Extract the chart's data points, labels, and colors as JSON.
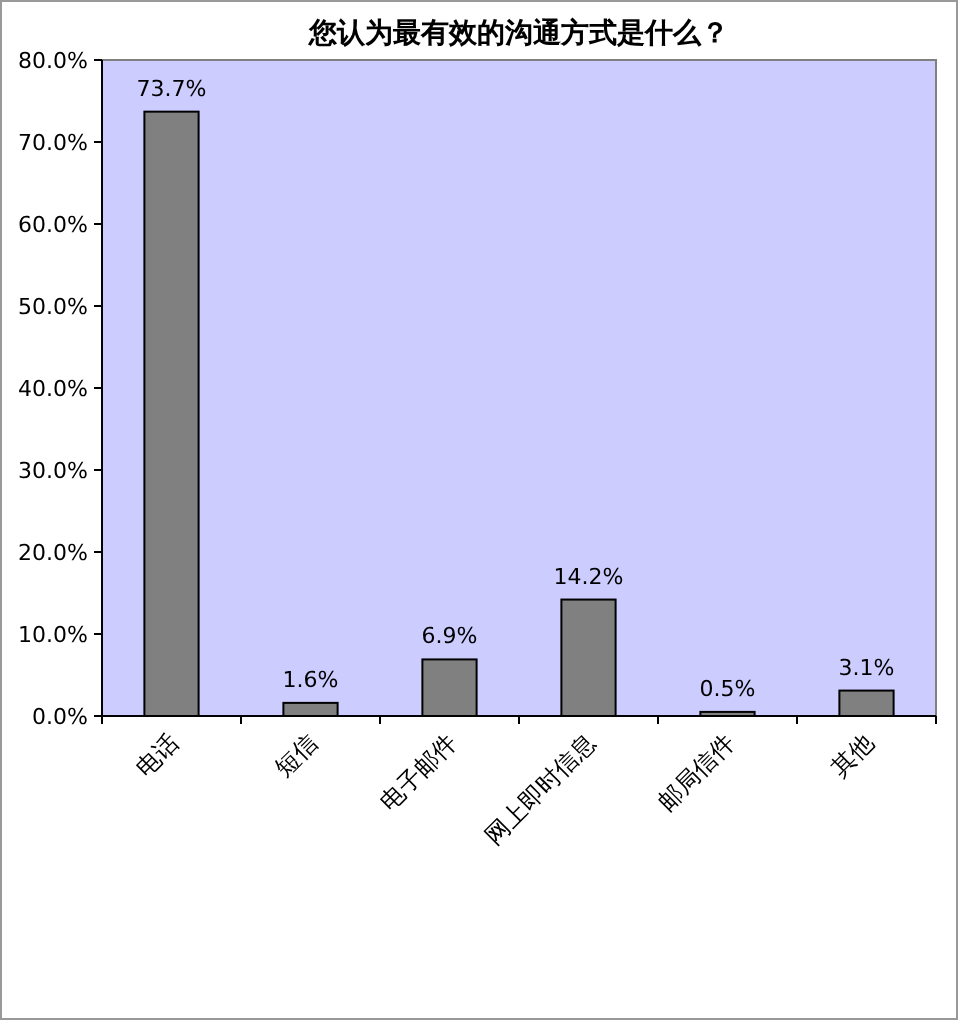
{
  "chart_data": {
    "type": "bar",
    "title": "您认为最有效的沟通方式是什么？",
    "categories": [
      "电话",
      "短信",
      "电子邮件",
      "网上即时信息",
      "邮局信件",
      "其他"
    ],
    "values": [
      73.7,
      1.6,
      6.9,
      14.2,
      0.5,
      3.1
    ],
    "value_labels": [
      "73.7%",
      "1.6%",
      "6.9%",
      "14.2%",
      "0.5%",
      "3.1%"
    ],
    "color": "#808080",
    "ylim": [
      0,
      80
    ],
    "yticks": [
      {
        "value": 0,
        "label": "0.0%"
      },
      {
        "value": 10,
        "label": "10.0%"
      },
      {
        "value": 20,
        "label": "20.0%"
      },
      {
        "value": 30,
        "label": "30.0%"
      },
      {
        "value": 40,
        "label": "40.0%"
      },
      {
        "value": 50,
        "label": "50.0%"
      },
      {
        "value": 60,
        "label": "60.0%"
      },
      {
        "value": 70,
        "label": "70.0%"
      },
      {
        "value": 80,
        "label": "80.0%"
      }
    ],
    "grid": false
  }
}
